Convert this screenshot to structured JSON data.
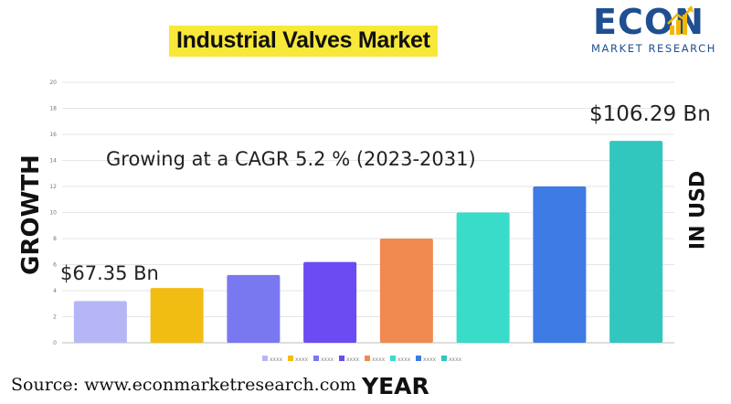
{
  "header": {
    "title": "Industrial Valves Market"
  },
  "logo": {
    "word": "ECON",
    "subtitle": "MARKET RESEARCH",
    "brand_color": "#1d4f91",
    "accent_color": "#f2b705"
  },
  "annotations": {
    "cagr": "Growing at a CAGR 5.2 % (2023-2031)",
    "start_value": "$67.35 Bn",
    "end_value": "$106.29 Bn"
  },
  "axes_text": {
    "left": "GROWTH",
    "right": "IN USD",
    "bottom": "YEAR"
  },
  "footer": {
    "source": "Source: www.econmarketresearch.com"
  },
  "chart_data": {
    "type": "bar",
    "categories": [
      "xxxx",
      "xxxx",
      "xxxx",
      "xxxx",
      "xxxx",
      "xxxx",
      "xxxx",
      "xxxx"
    ],
    "values": [
      3.2,
      4.2,
      5.2,
      6.2,
      8.0,
      10.0,
      12.0,
      15.5
    ],
    "colors": [
      "#b6b6f7",
      "#f2bd12",
      "#7a78f0",
      "#6a4cf2",
      "#f08a50",
      "#38dcc8",
      "#3e7be4",
      "#31c7bf"
    ],
    "yticks": [
      "0",
      "2",
      "4",
      "6",
      "8",
      "10",
      "12",
      "14",
      "16",
      "18",
      "20"
    ],
    "ylim": [
      0,
      20
    ],
    "grid": true,
    "legend": "bottom"
  }
}
